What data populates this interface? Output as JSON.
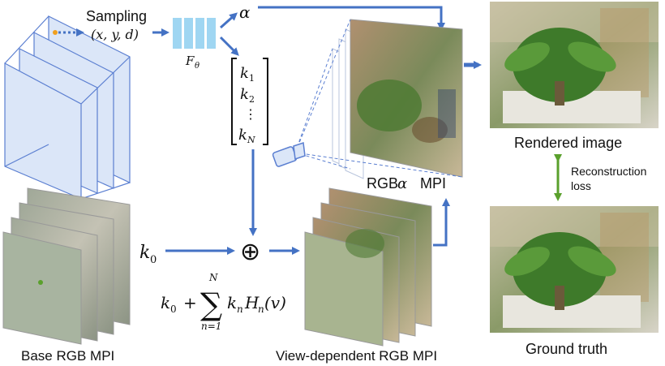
{
  "labels": {
    "sampling": "Sampling",
    "sampling_coords": "(x, y, d)",
    "network": "F",
    "network_sub": "θ",
    "alpha": "α",
    "k1_base": "k",
    "k1_sub": "1",
    "k2_base": "k",
    "k2_sub": "2",
    "kdots": "⋮",
    "kN_base": "k",
    "kN_sub": "N",
    "k0_base": "k",
    "k0_sub": "0",
    "oplus": "⊕",
    "formula_k0": "k",
    "formula_k0_sub": "0",
    "formula_plus": "+",
    "sum_symbol": "∑",
    "sum_upper": "N",
    "sum_lower": "n=1",
    "formula_term": "k",
    "formula_term_sub": "n",
    "formula_H": "H",
    "formula_H_sub": "n",
    "formula_arg": "(v)",
    "rgba_mpi_prefix": "RGB",
    "rgba_mpi_alpha": "α",
    "rgba_mpi_suffix": "MPI",
    "rendered_image": "Rendered image",
    "reconstruction": "Reconstruction",
    "loss": "loss",
    "ground_truth": "Ground truth",
    "base_rgb_mpi": "Base RGB MPI",
    "view_dependent_rgb_mpi": "View-dependent RGB MPI"
  },
  "colors": {
    "arrow_blue": "#4472c4",
    "arrow_green": "#5aa02c",
    "plane_fill": "#dbe6f8",
    "plane_stroke": "#5b7fd1",
    "net_fill": "#9fd6f2",
    "sample_dot": "#f0a020"
  },
  "icons": {
    "camera": "camera-icon"
  }
}
